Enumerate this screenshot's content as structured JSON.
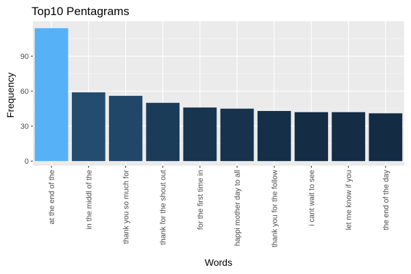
{
  "chart_data": {
    "type": "bar",
    "title": "Top10 Pentagrams",
    "xlabel": "Words",
    "ylabel": "Frequency",
    "categories": [
      "at the end of the",
      "in the middl of the",
      "thank you so much for",
      "thank for the shout out",
      "for the first time in",
      "happi mother day to all",
      "thank you for the follow",
      "i cant wait to see",
      "let me know if you",
      "the end of the day"
    ],
    "values": [
      114,
      59,
      56,
      50,
      46,
      45,
      43,
      42,
      42,
      41
    ],
    "ylim": [
      -4,
      120
    ],
    "yticks": [
      0,
      30,
      60,
      90
    ],
    "grid": true,
    "legend": "none",
    "colors": {
      "panel_background": "#ebebeb",
      "grid_major": "#ffffff",
      "grid_minor": "#f5f5f5",
      "tick_text": "#4d4d4d",
      "bar_low": "#132b43",
      "bar_high": "#56b1f7"
    }
  }
}
